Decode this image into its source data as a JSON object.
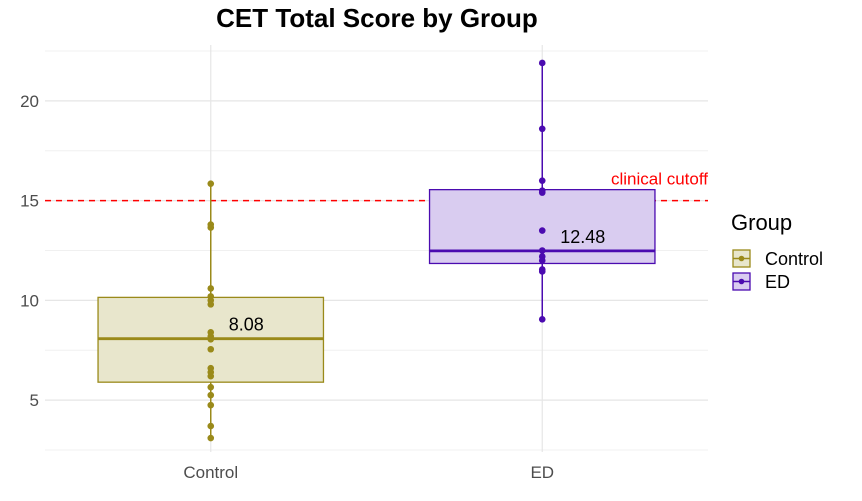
{
  "chart_data": {
    "type": "box",
    "title": "CET Total Score by Group",
    "xlabel": "",
    "ylabel": "",
    "categories": [
      "Control",
      "ED"
    ],
    "ylim": [
      2.4,
      22.8
    ],
    "yticks": [
      5,
      10,
      15,
      20
    ],
    "grid": true,
    "colors": {
      "Control": "#9a8a1a",
      "ED": "#4b0bb0"
    },
    "fills": {
      "Control": "#e8e6cc",
      "ED": "#d9ccf0"
    },
    "boxes": [
      {
        "group": "Control",
        "q1": 5.9,
        "median": 8.08,
        "q3": 10.15,
        "min": 3.1,
        "max": 15.85,
        "median_label": "8.08",
        "points": [
          15.85,
          13.8,
          13.65,
          10.6,
          10.2,
          10.0,
          9.8,
          8.4,
          8.2,
          8.05,
          7.55,
          6.6,
          6.4,
          6.2,
          5.65,
          5.25,
          4.75,
          3.7,
          3.1
        ]
      },
      {
        "group": "ED",
        "q1": 11.85,
        "median": 12.48,
        "q3": 15.55,
        "min": 9.05,
        "max": 21.9,
        "median_label": "12.48",
        "points": [
          21.9,
          18.6,
          16.0,
          15.5,
          15.4,
          13.5,
          12.5,
          12.2,
          12.0,
          11.55,
          11.45,
          9.05
        ]
      }
    ],
    "reference_line": {
      "y": 15,
      "label": "clinical cutoff",
      "color": "#ff0000",
      "style": "dashed"
    },
    "legend": {
      "title": "Group",
      "position": "right",
      "entries": [
        "Control",
        "ED"
      ]
    }
  }
}
